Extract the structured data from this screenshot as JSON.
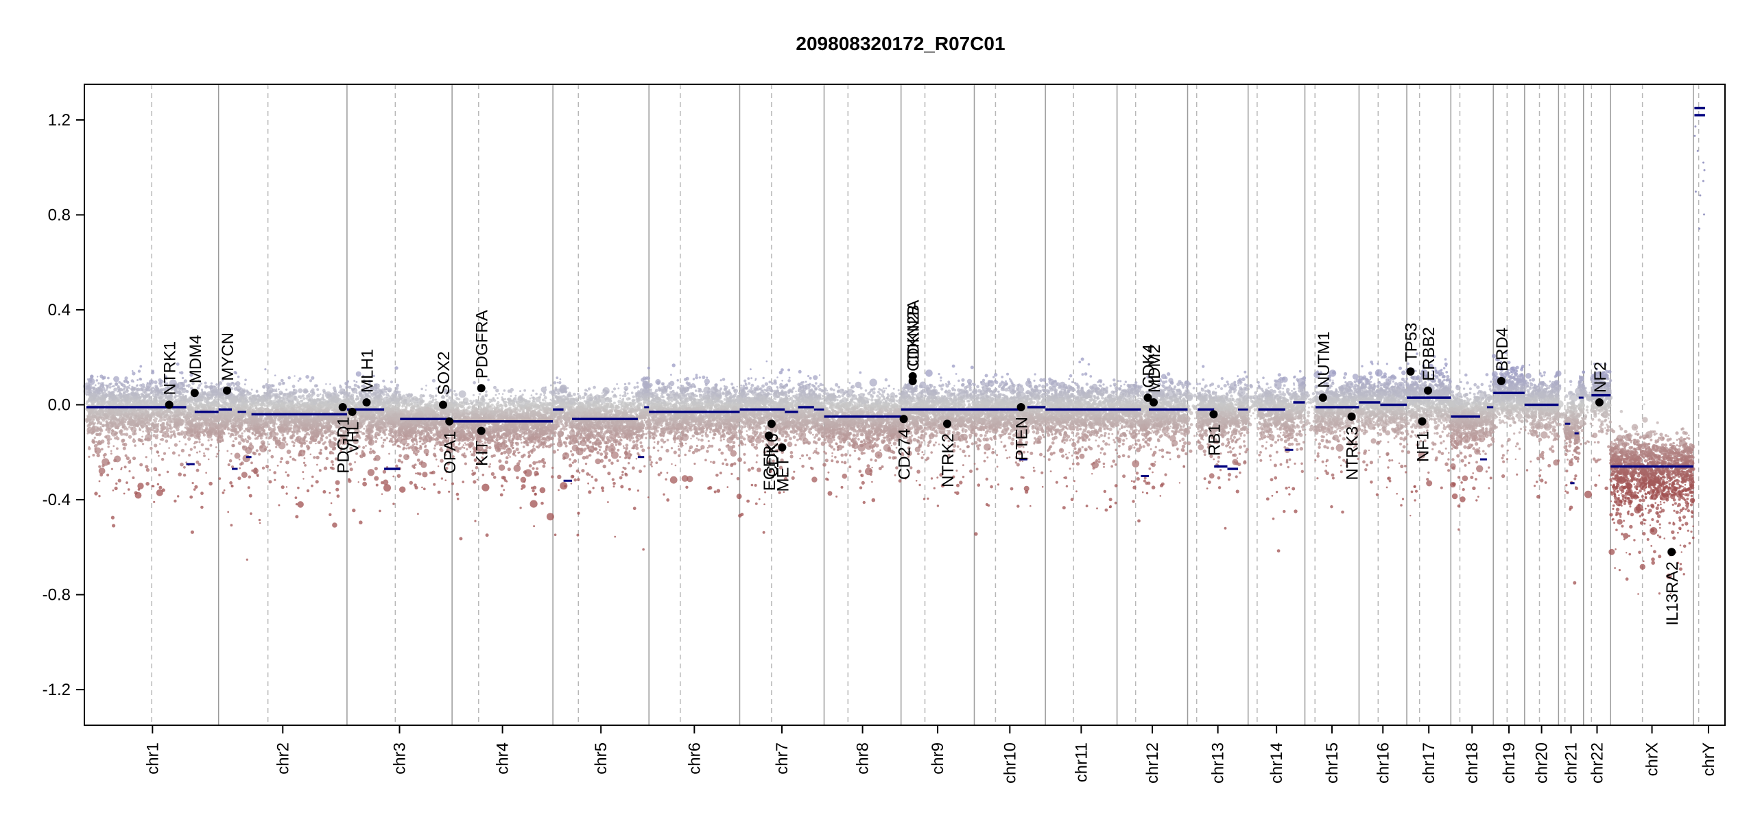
{
  "chart_data": {
    "type": "scatter",
    "subtype": "copy-number-segment-plot",
    "title": "209808320172_R07C01",
    "xlabel": "",
    "ylabel": "",
    "ylim": [
      -1.35,
      1.35
    ],
    "yticks": [
      1.2,
      0.8,
      0.4,
      0.0,
      -0.4,
      -0.8,
      -1.2
    ],
    "ytick_labels": [
      "1.2",
      "0.8",
      "0.4",
      "0.0",
      "-0.4",
      "-0.8",
      "-1.2"
    ],
    "x_units": "genome position (Mb, cumulative)",
    "chromosomes": [
      {
        "name": "chr1",
        "label": "chr1",
        "length": 249,
        "centromere": 123
      },
      {
        "name": "chr2",
        "label": "chr2",
        "length": 242,
        "centromere": 93
      },
      {
        "name": "chr3",
        "label": "chr3",
        "length": 198,
        "centromere": 91
      },
      {
        "name": "chr4",
        "label": "chr4",
        "length": 190,
        "centromere": 50
      },
      {
        "name": "chr5",
        "label": "chr5",
        "length": 181,
        "centromere": 48
      },
      {
        "name": "chr6",
        "label": "chr6",
        "length": 171,
        "centromere": 59
      },
      {
        "name": "chr7",
        "label": "chr7",
        "length": 159,
        "centromere": 60
      },
      {
        "name": "chr8",
        "label": "chr8",
        "length": 145,
        "centromere": 45
      },
      {
        "name": "chr9",
        "label": "chr9",
        "length": 138,
        "centromere": 45
      },
      {
        "name": "chr10",
        "label": "chr10",
        "length": 134,
        "centromere": 40
      },
      {
        "name": "chr11",
        "label": "chr11",
        "length": 135,
        "centromere": 53
      },
      {
        "name": "chr12",
        "label": "chr12",
        "length": 133,
        "centromere": 35
      },
      {
        "name": "chr13",
        "label": "chr13",
        "length": 114,
        "centromere": 17
      },
      {
        "name": "chr14",
        "label": "chr14",
        "length": 107,
        "centromere": 17
      },
      {
        "name": "chr15",
        "label": "chr15",
        "length": 102,
        "centromere": 19
      },
      {
        "name": "chr16",
        "label": "chr16",
        "length": 90,
        "centromere": 36
      },
      {
        "name": "chr17",
        "label": "chr17",
        "length": 83,
        "centromere": 24
      },
      {
        "name": "chr18",
        "label": "chr18",
        "length": 80,
        "centromere": 17
      },
      {
        "name": "chr19",
        "label": "chr19",
        "length": 59,
        "centromere": 26
      },
      {
        "name": "chr20",
        "label": "chr20",
        "length": 64,
        "centromere": 28
      },
      {
        "name": "chr21",
        "label": "chr21",
        "length": 47,
        "centromere": 12
      },
      {
        "name": "chr22",
        "label": "chr22",
        "length": 51,
        "centromere": 15
      },
      {
        "name": "chrX",
        "label": "chrX",
        "length": 156,
        "centromere": 60
      },
      {
        "name": "chrY",
        "label": "chrY",
        "length": 57,
        "centromere": 10
      }
    ],
    "segments": [
      {
        "chr": "chr1",
        "start": 0,
        "end": 188,
        "value": -0.01
      },
      {
        "chr": "chr1",
        "start": 188,
        "end": 204,
        "value": -0.25
      },
      {
        "chr": "chr1",
        "start": 204,
        "end": 249,
        "value": -0.03
      },
      {
        "chr": "chr2",
        "start": 0,
        "end": 25,
        "value": -0.02
      },
      {
        "chr": "chr2",
        "start": 25,
        "end": 36,
        "value": -0.27
      },
      {
        "chr": "chr2",
        "start": 36,
        "end": 52,
        "value": -0.03
      },
      {
        "chr": "chr2",
        "start": 52,
        "end": 62,
        "value": -0.22
      },
      {
        "chr": "chr2",
        "start": 62,
        "end": 242,
        "value": -0.04
      },
      {
        "chr": "chr3",
        "start": 0,
        "end": 70,
        "value": -0.02
      },
      {
        "chr": "chr3",
        "start": 70,
        "end": 100,
        "value": -0.27
      },
      {
        "chr": "chr3",
        "start": 100,
        "end": 198,
        "value": -0.06
      },
      {
        "chr": "chr4",
        "start": 0,
        "end": 190,
        "value": -0.07
      },
      {
        "chr": "chr5",
        "start": 0,
        "end": 20,
        "value": -0.02
      },
      {
        "chr": "chr5",
        "start": 20,
        "end": 36,
        "value": -0.32
      },
      {
        "chr": "chr5",
        "start": 36,
        "end": 160,
        "value": -0.06
      },
      {
        "chr": "chr5",
        "start": 160,
        "end": 172,
        "value": -0.22
      },
      {
        "chr": "chr5",
        "start": 172,
        "end": 181,
        "value": -0.01
      },
      {
        "chr": "chr6",
        "start": 0,
        "end": 171,
        "value": -0.03
      },
      {
        "chr": "chr7",
        "start": 0,
        "end": 85,
        "value": -0.02
      },
      {
        "chr": "chr7",
        "start": 85,
        "end": 110,
        "value": -0.03
      },
      {
        "chr": "chr7",
        "start": 110,
        "end": 140,
        "value": -0.01
      },
      {
        "chr": "chr7",
        "start": 140,
        "end": 159,
        "value": -0.02
      },
      {
        "chr": "chr8",
        "start": 0,
        "end": 145,
        "value": -0.05
      },
      {
        "chr": "chr9",
        "start": 0,
        "end": 138,
        "value": -0.02
      },
      {
        "chr": "chr10",
        "start": 0,
        "end": 85,
        "value": -0.02
      },
      {
        "chr": "chr10",
        "start": 85,
        "end": 100,
        "value": -0.23
      },
      {
        "chr": "chr10",
        "start": 100,
        "end": 134,
        "value": -0.01
      },
      {
        "chr": "chr11",
        "start": 0,
        "end": 135,
        "value": -0.02
      },
      {
        "chr": "chr12",
        "start": 0,
        "end": 45,
        "value": -0.02
      },
      {
        "chr": "chr12",
        "start": 45,
        "end": 60,
        "value": -0.3
      },
      {
        "chr": "chr12",
        "start": 60,
        "end": 133,
        "value": -0.02
      },
      {
        "chr": "chr13",
        "start": 19,
        "end": 50,
        "value": -0.02
      },
      {
        "chr": "chr13",
        "start": 50,
        "end": 75,
        "value": -0.26
      },
      {
        "chr": "chr13",
        "start": 75,
        "end": 95,
        "value": -0.27
      },
      {
        "chr": "chr13",
        "start": 95,
        "end": 114,
        "value": -0.02
      },
      {
        "chr": "chr14",
        "start": 19,
        "end": 70,
        "value": -0.02
      },
      {
        "chr": "chr14",
        "start": 70,
        "end": 85,
        "value": -0.19
      },
      {
        "chr": "chr14",
        "start": 85,
        "end": 107,
        "value": 0.01
      },
      {
        "chr": "chr15",
        "start": 20,
        "end": 102,
        "value": -0.01
      },
      {
        "chr": "chr16",
        "start": 0,
        "end": 40,
        "value": 0.01
      },
      {
        "chr": "chr16",
        "start": 40,
        "end": 90,
        "value": 0.0
      },
      {
        "chr": "chr17",
        "start": 0,
        "end": 83,
        "value": 0.03
      },
      {
        "chr": "chr18",
        "start": 0,
        "end": 55,
        "value": -0.05
      },
      {
        "chr": "chr18",
        "start": 55,
        "end": 68,
        "value": -0.23
      },
      {
        "chr": "chr18",
        "start": 68,
        "end": 80,
        "value": -0.01
      },
      {
        "chr": "chr19",
        "start": 0,
        "end": 59,
        "value": 0.05
      },
      {
        "chr": "chr20",
        "start": 0,
        "end": 64,
        "value": 0.0
      },
      {
        "chr": "chr21",
        "start": 12,
        "end": 22,
        "value": -0.08
      },
      {
        "chr": "chr21",
        "start": 22,
        "end": 30,
        "value": -0.33
      },
      {
        "chr": "chr21",
        "start": 30,
        "end": 38,
        "value": -0.12
      },
      {
        "chr": "chr21",
        "start": 38,
        "end": 47,
        "value": 0.03
      },
      {
        "chr": "chr22",
        "start": 15,
        "end": 51,
        "value": 0.04
      },
      {
        "chr": "chrX",
        "start": 0,
        "end": 156,
        "value": -0.26
      },
      {
        "chr": "chrY",
        "start": 2,
        "end": 22,
        "value": 1.22
      },
      {
        "chr": "chrY",
        "start": 2,
        "end": 22,
        "value": 1.25
      }
    ],
    "genes": [
      {
        "name": "NTRK1",
        "chr": "chr1",
        "pos": 156,
        "value": 0.0,
        "label_side": "above"
      },
      {
        "name": "MDM4",
        "chr": "chr1",
        "pos": 204,
        "value": 0.05,
        "label_side": "above"
      },
      {
        "name": "MYCN",
        "chr": "chr2",
        "pos": 16,
        "value": 0.06,
        "label_side": "above"
      },
      {
        "name": "PDGD1",
        "chr": "chr2",
        "pos": 234,
        "value": -0.01,
        "label_side": "below"
      },
      {
        "name": "VHL",
        "chr": "chr3",
        "pos": 10,
        "value": -0.03,
        "label_side": "below"
      },
      {
        "name": "MLH1",
        "chr": "chr3",
        "pos": 37,
        "value": 0.01,
        "label_side": "above"
      },
      {
        "name": "SOX2",
        "chr": "chr3",
        "pos": 181,
        "value": 0.0,
        "label_side": "above"
      },
      {
        "name": "OPA1",
        "chr": "chr3",
        "pos": 193,
        "value": -0.07,
        "label_side": "below"
      },
      {
        "name": "PDGFRA",
        "chr": "chr4",
        "pos": 55,
        "value": 0.07,
        "label_side": "above"
      },
      {
        "name": "KIT",
        "chr": "chr4",
        "pos": 55,
        "value": -0.11,
        "label_side": "below"
      },
      {
        "name": "EGFR",
        "chr": "chr7",
        "pos": 55,
        "value": -0.13,
        "label_side": "below"
      },
      {
        "name": "CDK6",
        "chr": "chr7",
        "pos": 60,
        "value": -0.08,
        "label_side": "below"
      },
      {
        "name": "MET",
        "chr": "chr7",
        "pos": 80,
        "value": -0.18,
        "label_side": "below"
      },
      {
        "name": "CD274",
        "chr": "chr9",
        "pos": 5,
        "value": -0.06,
        "label_side": "below"
      },
      {
        "name": "CDKN2A",
        "chr": "chr9",
        "pos": 22,
        "value": 0.12,
        "label_side": "above"
      },
      {
        "name": "CDKN2B",
        "chr": "chr9",
        "pos": 22,
        "value": 0.1,
        "label_side": "above"
      },
      {
        "name": "NTRK2",
        "chr": "chr9",
        "pos": 87,
        "value": -0.08,
        "label_side": "below"
      },
      {
        "name": "PTEN",
        "chr": "chr10",
        "pos": 88,
        "value": -0.01,
        "label_side": "below"
      },
      {
        "name": "CDK4",
        "chr": "chr12",
        "pos": 58,
        "value": 0.03,
        "label_side": "above"
      },
      {
        "name": "MDM2",
        "chr": "chr12",
        "pos": 69,
        "value": 0.01,
        "label_side": "above"
      },
      {
        "name": "RB1",
        "chr": "chr13",
        "pos": 49,
        "value": -0.04,
        "label_side": "below"
      },
      {
        "name": "NUTM1",
        "chr": "chr15",
        "pos": 34,
        "value": 0.03,
        "label_side": "above"
      },
      {
        "name": "NTRK3",
        "chr": "chr15",
        "pos": 88,
        "value": -0.05,
        "label_side": "below"
      },
      {
        "name": "TP53",
        "chr": "chr17",
        "pos": 7,
        "value": 0.14,
        "label_side": "above"
      },
      {
        "name": "NF1",
        "chr": "chr17",
        "pos": 29,
        "value": -0.07,
        "label_side": "below"
      },
      {
        "name": "ERBB2",
        "chr": "chr17",
        "pos": 40,
        "value": 0.06,
        "label_side": "above"
      },
      {
        "name": "BRD4",
        "chr": "chr19",
        "pos": 15,
        "value": 0.1,
        "label_side": "above"
      },
      {
        "name": "NF2",
        "chr": "chr22",
        "pos": 30,
        "value": 0.01,
        "label_side": "above"
      },
      {
        "name": "IL13RA2",
        "chr": "chrX",
        "pos": 115,
        "value": -0.62,
        "label_side": "below"
      }
    ],
    "probe_colors": {
      "gain": "#9a9ac4",
      "neutral": "#c8c8c8",
      "loss": "#a05050",
      "segment": "#00007f"
    },
    "random_seed": 20980832
  }
}
